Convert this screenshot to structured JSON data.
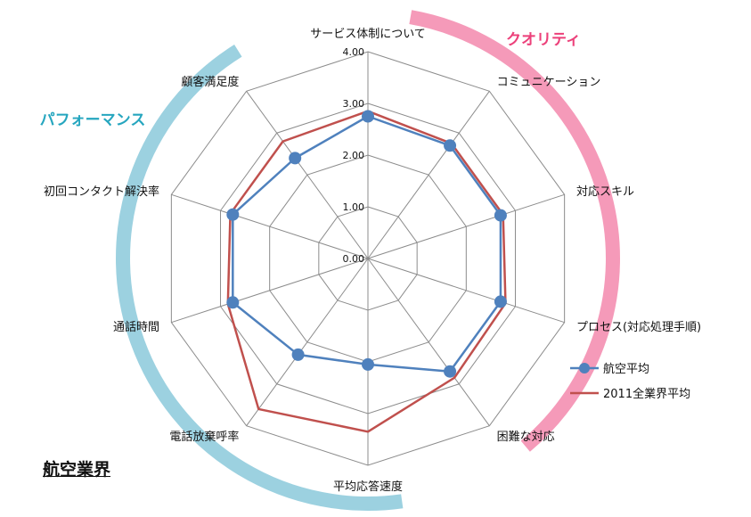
{
  "title": "航空業界",
  "chart_data": {
    "type": "radar",
    "categories": [
      "サービス体制について",
      "コミュニケーション",
      "対応スキル",
      "プロセス(対応処理手順)",
      "困難な対応",
      "平均応答速度",
      "電話放棄呼率",
      "通話時間",
      "初回コンタクト解決率",
      "顧客満足度"
    ],
    "ticks": [
      "0.00",
      "1.00",
      "2.00",
      "3.00",
      "4.00"
    ],
    "rlim": [
      0,
      4
    ],
    "series": [
      {
        "name": "航空平均",
        "values": [
          2.75,
          2.7,
          2.7,
          2.7,
          2.7,
          2.05,
          2.3,
          2.75,
          2.75,
          2.4
        ],
        "color": "#4f81bd",
        "marker": "circle"
      },
      {
        "name": "2011全業界平均",
        "values": [
          2.85,
          2.75,
          2.75,
          2.8,
          2.85,
          3.35,
          3.6,
          2.85,
          2.8,
          2.8
        ],
        "color": "#c0504d"
      }
    ],
    "groups": [
      {
        "label": "クオリティ",
        "color": "#f48fb1"
      },
      {
        "label": "パフォーマンス",
        "color": "#4bacc6"
      }
    ],
    "legend": "right"
  }
}
